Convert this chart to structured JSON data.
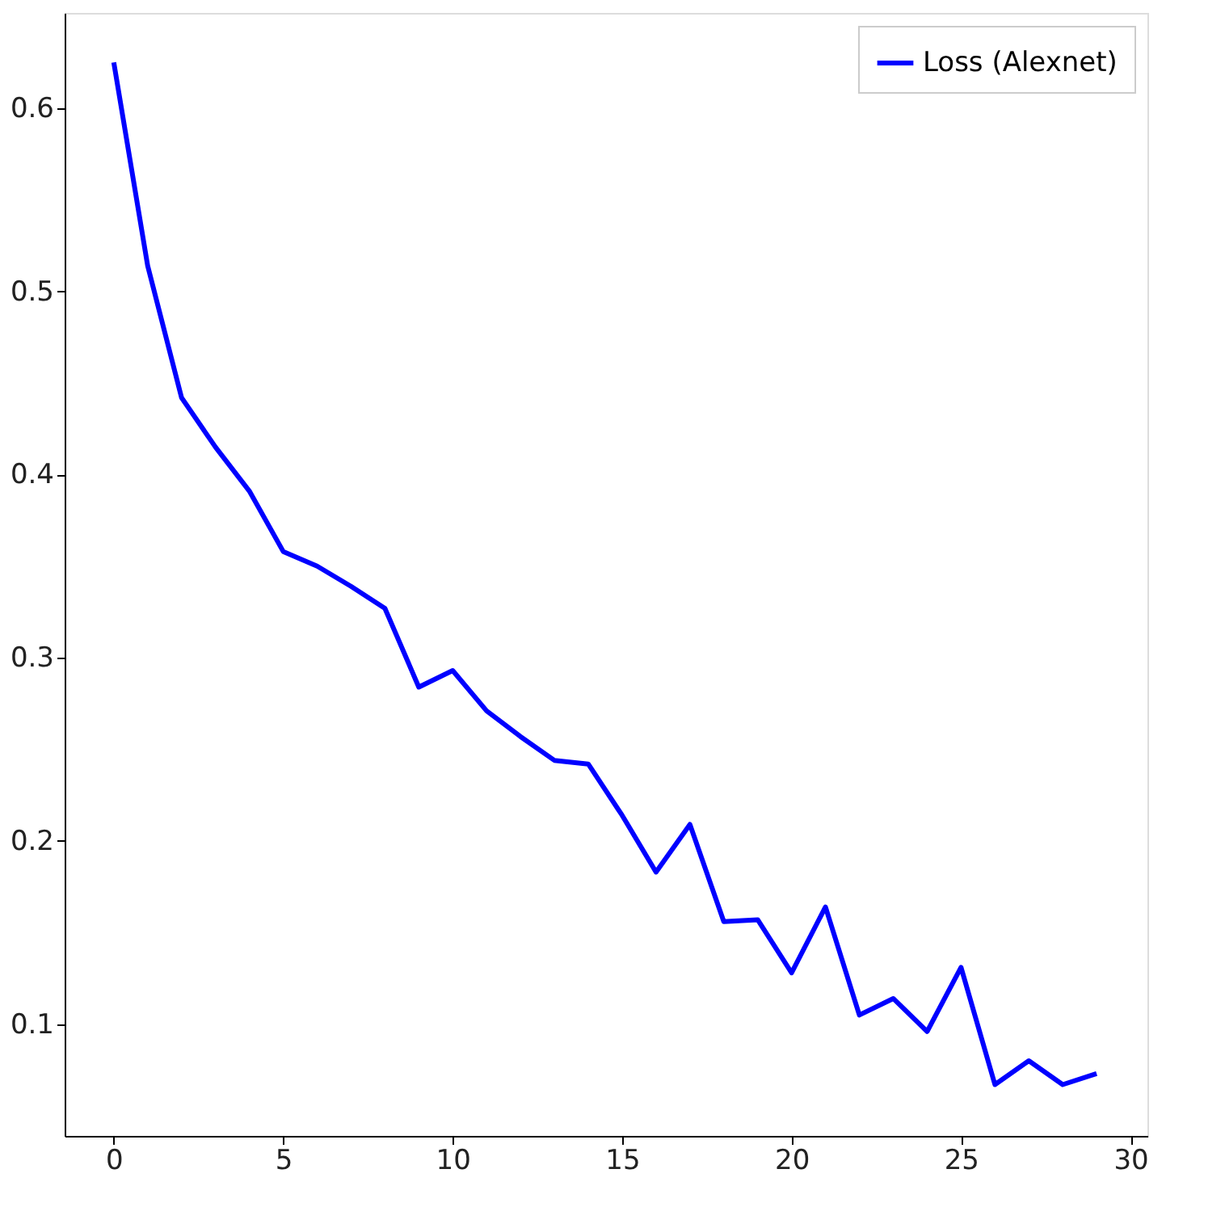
{
  "chart_data": {
    "type": "line",
    "x": [
      0,
      1,
      2,
      3,
      4,
      5,
      6,
      7,
      8,
      9,
      10,
      11,
      12,
      13,
      14,
      15,
      16,
      17,
      18,
      19,
      20,
      21,
      22,
      23,
      24,
      25,
      26,
      27,
      28,
      29
    ],
    "series": [
      {
        "name": "Loss (Alexnet)",
        "color": "#0000ff",
        "values": [
          0.625,
          0.514,
          0.442,
          0.415,
          0.391,
          0.358,
          0.35,
          0.339,
          0.327,
          0.284,
          0.293,
          0.271,
          0.257,
          0.244,
          0.242,
          0.214,
          0.183,
          0.209,
          0.156,
          0.157,
          0.128,
          0.164,
          0.105,
          0.114,
          0.096,
          0.131,
          0.067,
          0.08,
          0.067,
          0.073
        ]
      }
    ],
    "xlim": [
      -1.45,
      30.5
    ],
    "ylim": [
      0.039,
      0.652
    ],
    "xticks": [
      0,
      5,
      10,
      15,
      20,
      25,
      30
    ],
    "yticks": [
      0.1,
      0.2,
      0.3,
      0.4,
      0.5,
      0.6
    ],
    "grid": false,
    "legend": "top right",
    "marker": "none",
    "line_style": "solid"
  }
}
